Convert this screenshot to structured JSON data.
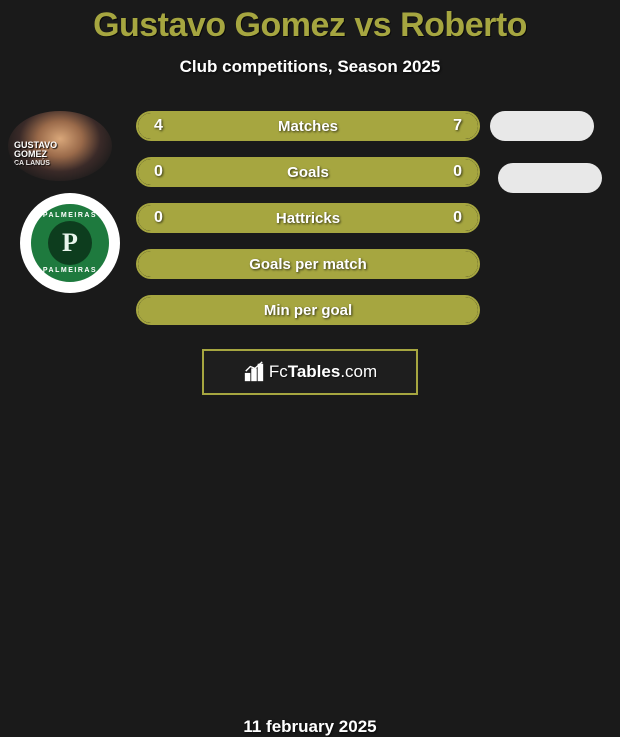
{
  "title": "Gustavo Gomez vs Roberto",
  "subtitle": "Club competitions, Season 2025",
  "date": "11 february 2025",
  "logo": {
    "text_fc": "Fc",
    "text_tables": "Tables",
    "text_com": ".com"
  },
  "colors": {
    "accent": "#a6a640",
    "background": "#1a1a1a",
    "text": "#ffffff",
    "pill": "#e8e8e8",
    "badge_green": "#1e7a3e",
    "badge_dark": "#0d3d1e"
  },
  "player1_badge": {
    "line1": "GUSTAVO",
    "line2": "GOMEZ",
    "team": "CA LANÚS"
  },
  "player2_badge": {
    "ring_top": "PALMEIRAS",
    "ring_bottom": "PALMEIRAS",
    "monogram": "P"
  },
  "rows": [
    {
      "label": "Matches",
      "left": "4",
      "right": "7",
      "left_fill_pct": 36,
      "right_fill_pct": 64,
      "show_vals": true,
      "fill_mode": "split"
    },
    {
      "label": "Goals",
      "left": "0",
      "right": "0",
      "left_fill_pct": 0,
      "right_fill_pct": 0,
      "show_vals": true,
      "fill_mode": "full"
    },
    {
      "label": "Hattricks",
      "left": "0",
      "right": "0",
      "left_fill_pct": 0,
      "right_fill_pct": 0,
      "show_vals": true,
      "fill_mode": "full"
    },
    {
      "label": "Goals per match",
      "left": "",
      "right": "",
      "left_fill_pct": 0,
      "right_fill_pct": 0,
      "show_vals": false,
      "fill_mode": "full"
    },
    {
      "label": "Min per goal",
      "left": "",
      "right": "",
      "left_fill_pct": 0,
      "right_fill_pct": 0,
      "show_vals": false,
      "fill_mode": "full"
    }
  ]
}
